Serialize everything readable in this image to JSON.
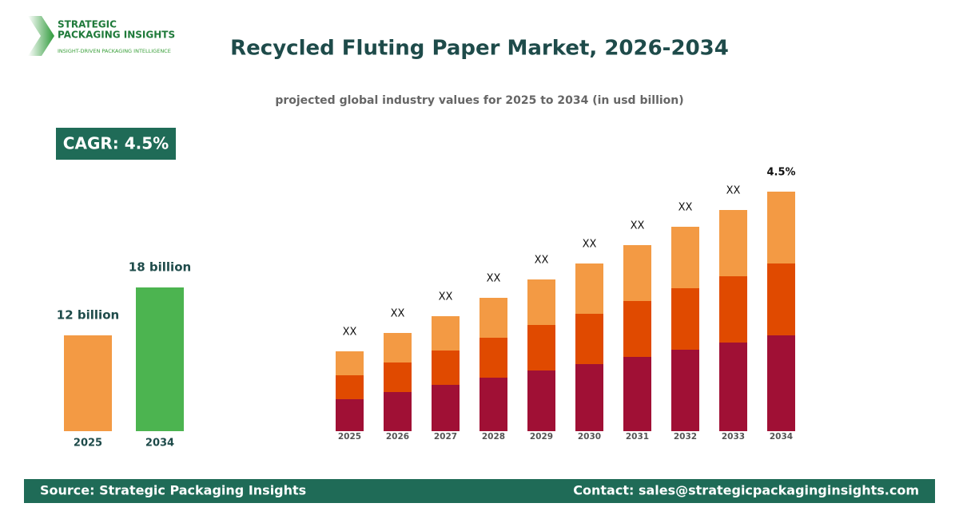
{
  "header": {
    "logo_lines": [
      "STRATEGIC",
      "PACKAGING INSIGHTS"
    ],
    "tagline": "INSIGHT-DRIVEN PACKAGING INTELLIGENCE",
    "title": "Recycled Fluting Paper Market, 2026-2034",
    "subtitle": "projected global industry values for 2025 to 2034 (in usd billion)",
    "cagr": "CAGR: 4.5%"
  },
  "chart_data": [
    {
      "type": "bar",
      "categories": [
        "2025",
        "2034"
      ],
      "values": [
        12,
        18
      ],
      "value_labels": [
        "12 billion",
        "18 billion"
      ],
      "colors": [
        "#F39A44",
        "#4CB450"
      ]
    },
    {
      "type": "stacked_bar",
      "categories": [
        "2025",
        "2026",
        "2027",
        "2028",
        "2029",
        "2030",
        "2031",
        "2032",
        "2033",
        "2034"
      ],
      "series": [
        {
          "color": "#A01035",
          "values": [
            40,
            49,
            58,
            67,
            76,
            84,
            93,
            102,
            111,
            120
          ]
        },
        {
          "color": "#E04A00",
          "values": [
            30,
            37,
            43,
            50,
            57,
            63,
            70,
            77,
            83,
            90
          ]
        },
        {
          "color": "#F39A44",
          "values": [
            30,
            37,
            43,
            50,
            57,
            63,
            70,
            77,
            83,
            90
          ]
        }
      ],
      "top_labels": [
        "XX",
        "XX",
        "XX",
        "XX",
        "XX",
        "XX",
        "XX",
        "XX",
        "XX",
        "4.5%"
      ]
    }
  ],
  "footer": {
    "source": "Source: Strategic Packaging Insights",
    "contact": "Contact: sales@strategicpackaginginsights.com"
  }
}
